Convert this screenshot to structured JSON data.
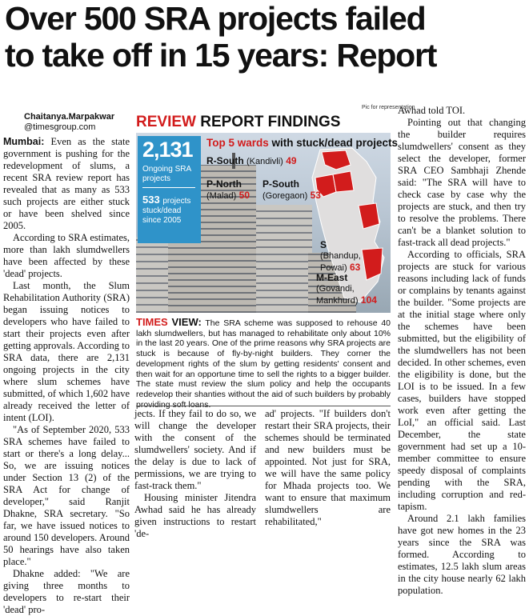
{
  "headline": {
    "line1": "Over 500 SRA projects failed",
    "line2": "to take off in 15 years: Report"
  },
  "byline": {
    "name": "Chaitanya.Marpakwar",
    "handle": "@timesgroup.com"
  },
  "pic_caption": "Pic for representation",
  "box": {
    "title_prefix": "REVIEW",
    "title_suffix": "REPORT FINDINGS",
    "stat1_number": "2,131",
    "stat1_label": "Ongoing SRA projects",
    "stat2_number": "533",
    "stat2_number_suffix": "projects",
    "stat2_label": "stuck/dead since 2005",
    "top5_highlight": "Top 5 wards",
    "top5_rest": "with stuck/dead projects",
    "wards": [
      {
        "name": "R-South",
        "area": "(Kandivli)",
        "count": "49"
      },
      {
        "name": "P-North",
        "area": "(Malad)",
        "count": "50"
      },
      {
        "name": "P-South",
        "area": "(Goregaon)",
        "count": "53"
      },
      {
        "name": "S",
        "area": "(Bhandup, Powai)",
        "count": "63"
      },
      {
        "name": "M-East",
        "area": "(Govandi, Mankhurd)",
        "count": "104"
      }
    ],
    "ward_lines": {
      "rsouth_area": "(Kandivli)",
      "pnorth_area": "(Malad)",
      "psouth_area": "(Goregaon)",
      "s_area1": "(Bhandup,",
      "s_area2": "Powai)",
      "meast_area1": "(Govandi,",
      "meast_area2": "Mankhurd)"
    },
    "map_colors": {
      "highlight": "#d21c1c",
      "land": "#e0dede",
      "border": "#ffffff"
    }
  },
  "times_view": {
    "label1": "TIMES",
    "label2": "VIEW:",
    "text": "The SRA scheme was supposed to rehouse 40 lakh slumdwellers, but has managed to rehabilitate only about 10% in the last 20 years. One of the prime reasons why SRA projects are stuck is because of fly-by-night builders. They corner the development rights of the slum by getting residents' consent and then wait for an opportune time to sell the rights to a bigger builder. The state must review the slum policy and help the occupants redevelop their shanties without the aid of such builders by probably providing soft loans."
  },
  "col1": {
    "dateline": "Mumbai:",
    "p1": "Even as the state government is pushing for the redevelopment of slums, a recent SRA review report has revealed that as many as 533 such projects are either stuck or have been shelved since 2005.",
    "p2": "According to SRA estimates, more than lakh slumdwellers have been affected by these 'dead' projects.",
    "p3": "Last month, the Slum Rehabilitation Authority (SRA) began issuing notices to developers who have failed to start their projects even after getting approvals. According to SRA data, there are 2,131 ongoing projects in the city where slum schemes have submitted, of which 1,602 have already received the letter of intent (LOI).",
    "p4": "\"As of September 2020, 533 SRA schemes have failed to start or there's a long delay... So, we are issuing notices under Section 13 (2) of the SRA Act for change of developer,\" said Ranjit Dhakne, SRA secretary. \"So far, we have issued notices to around 150 developers. Around 50 hearings have also taken place.\"",
    "p5": "Dhakne added: \"We are giving three months to developers to re-start their 'dead' pro-"
  },
  "col2": {
    "p1": "jects. If they fail to do so, we will change the developer with the consent of the slumdwellers' society. And if the delay is due to lack of permissions, we are trying to fast-track them.\"",
    "p2": "Housing minister Jitendra Awhad said he has already given instructions to restart 'de-"
  },
  "col3": {
    "p1": "ad' projects. \"If builders don't restart their SRA projects, their schemes should be terminated and new builders must be appointed. Not just for SRA, we will have the same policy for Mhada projects too. We want to ensure that maximum slumdwellers are rehabilitated,\""
  },
  "col4": {
    "p0": "Awhad told TOI.",
    "p1": "Pointing out that changing the builder requires slumdwellers' consent as they select the developer, former SRA CEO Sambhaji Zhende said: \"The SRA will have to check case by case why the projects are stuck, and then try to resolve the problems. There can't be a blanket solution to fast-track all dead projects.\"",
    "p2": "According to officials, SRA projects are stuck for various reasons including lack of funds or complains by tenants against the builder. \"Some projects are at the initial stage where only the schemes have been submitted, but the eligibility of the slumdwellers has not been decided. In other schemes, even the eligibility is done, but the LOI is to be issued. In a few cases, builders have stopped work even after getting the LoI,\" an official said. Last December, the state government had set up a 10-member committee to ensure speedy disposal of complaints pending with the SRA, including corruption and red-tapism.",
    "p3": "Around 2.1 lakh families have got new homes in the 23 years since the SRA was formed. According to estimates, 12.5 lakh slum areas in the city house nearly 62 lakh population."
  }
}
